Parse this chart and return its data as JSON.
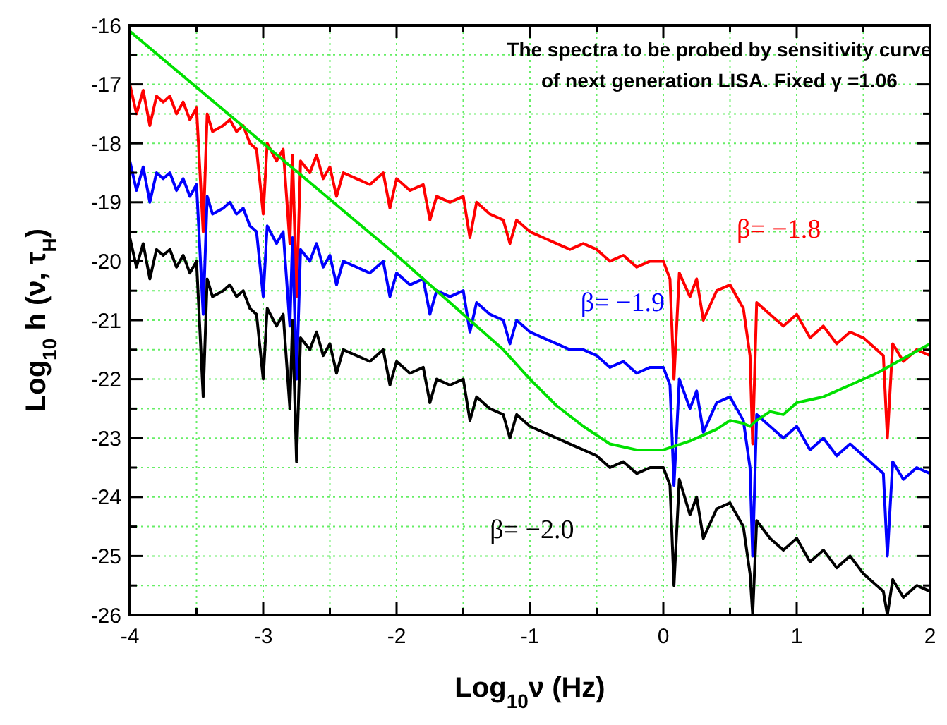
{
  "chart_data": {
    "type": "line",
    "title": "The spectra to be probed by sensitivity curve\nof next generation LISA. Fixed γ =1.06",
    "xlabel": "Log$_{10}$ν (Hz)",
    "ylabel": "Log$_{10}$ h (ν, τ$_{H}$)",
    "x": [
      -4,
      -3.95,
      -3.9,
      -3.85,
      -3.8,
      -3.75,
      -3.7,
      -3.65,
      -3.6,
      -3.55,
      -3.5,
      -3.45,
      -3.42,
      -3.38,
      -3.3,
      -3.25,
      -3.2,
      -3.15,
      -3.1,
      -3.05,
      -3.0,
      -2.97,
      -2.9,
      -2.85,
      -2.8,
      -2.78,
      -2.75,
      -2.72,
      -2.65,
      -2.6,
      -2.55,
      -2.5,
      -2.45,
      -2.4,
      -2.3,
      -2.2,
      -2.1,
      -2.05,
      -2.0,
      -1.9,
      -1.8,
      -1.75,
      -1.7,
      -1.6,
      -1.5,
      -1.45,
      -1.4,
      -1.3,
      -1.2,
      -1.15,
      -1.1,
      -1.0,
      -0.9,
      -0.8,
      -0.7,
      -0.6,
      -0.5,
      -0.4,
      -0.3,
      -0.2,
      -0.1,
      0,
      0.05,
      0.08,
      0.12,
      0.2,
      0.25,
      0.3,
      0.4,
      0.5,
      0.6,
      0.65,
      0.67,
      0.7,
      0.8,
      0.9,
      1.0,
      1.1,
      1.2,
      1.3,
      1.4,
      1.5,
      1.6,
      1.65,
      1.68,
      1.72,
      1.8,
      1.9,
      2.0
    ],
    "series": [
      {
        "name": "β= −1.8",
        "color": "#ff0000",
        "values": [
          -17.0,
          -17.5,
          -17.1,
          -17.7,
          -17.2,
          -17.3,
          -17.2,
          -17.5,
          -17.3,
          -17.6,
          -17.4,
          -19.5,
          -17.5,
          -17.8,
          -17.7,
          -17.6,
          -17.8,
          -17.7,
          -18.0,
          -18.1,
          -19.2,
          -18.0,
          -18.3,
          -18.1,
          -19.7,
          -18.2,
          -20.6,
          -18.3,
          -18.5,
          -18.2,
          -18.6,
          -18.4,
          -18.9,
          -18.5,
          -18.6,
          -18.7,
          -18.5,
          -19.1,
          -18.6,
          -18.8,
          -18.7,
          -19.3,
          -18.9,
          -19.0,
          -18.9,
          -19.6,
          -19.0,
          -19.2,
          -19.3,
          -19.7,
          -19.3,
          -19.5,
          -19.6,
          -19.7,
          -19.8,
          -19.7,
          -19.8,
          -20.0,
          -19.9,
          -20.1,
          -20.0,
          -20.0,
          -20.3,
          -22.0,
          -20.2,
          -20.6,
          -20.3,
          -21.0,
          -20.5,
          -20.4,
          -20.8,
          -21.6,
          -23.1,
          -20.7,
          -20.9,
          -21.1,
          -20.9,
          -21.3,
          -21.1,
          -21.4,
          -21.2,
          -21.3,
          -21.5,
          -21.6,
          -23.0,
          -21.4,
          -21.7,
          -21.5,
          -21.6
        ]
      },
      {
        "name": "β= −1.9",
        "color": "#0000ff",
        "values": [
          -18.3,
          -18.8,
          -18.4,
          -19.0,
          -18.5,
          -18.6,
          -18.5,
          -18.8,
          -18.6,
          -18.9,
          -18.7,
          -20.9,
          -18.9,
          -19.2,
          -19.1,
          -19.0,
          -19.2,
          -19.1,
          -19.4,
          -19.5,
          -20.6,
          -19.4,
          -19.7,
          -19.5,
          -21.1,
          -19.6,
          -22.0,
          -19.8,
          -20.0,
          -19.7,
          -20.1,
          -19.9,
          -20.4,
          -20.0,
          -20.1,
          -20.2,
          -20.0,
          -20.6,
          -20.2,
          -20.4,
          -20.3,
          -20.9,
          -20.5,
          -20.6,
          -20.5,
          -21.2,
          -20.7,
          -20.9,
          -21.0,
          -21.4,
          -21.0,
          -21.2,
          -21.3,
          -21.4,
          -21.5,
          -21.5,
          -21.6,
          -21.8,
          -21.7,
          -21.9,
          -21.8,
          -21.8,
          -22.1,
          -23.8,
          -22.0,
          -22.5,
          -22.2,
          -22.9,
          -22.4,
          -22.3,
          -22.7,
          -23.5,
          -25.0,
          -22.6,
          -22.8,
          -23.0,
          -22.8,
          -23.2,
          -23.0,
          -23.3,
          -23.1,
          -23.3,
          -23.5,
          -23.6,
          -25.0,
          -23.4,
          -23.7,
          -23.5,
          -23.6
        ]
      },
      {
        "name": "β= −2.0",
        "color": "#000000",
        "values": [
          -19.6,
          -20.1,
          -19.7,
          -20.3,
          -19.8,
          -19.9,
          -19.8,
          -20.1,
          -19.9,
          -20.2,
          -20.0,
          -22.3,
          -20.3,
          -20.6,
          -20.5,
          -20.4,
          -20.6,
          -20.5,
          -20.8,
          -20.9,
          -22.0,
          -20.8,
          -21.1,
          -20.9,
          -22.5,
          -21.0,
          -23.4,
          -21.3,
          -21.5,
          -21.2,
          -21.6,
          -21.4,
          -21.9,
          -21.5,
          -21.6,
          -21.7,
          -21.5,
          -22.1,
          -21.7,
          -21.9,
          -21.8,
          -22.4,
          -22.0,
          -22.1,
          -22.0,
          -22.7,
          -22.3,
          -22.5,
          -22.6,
          -23.0,
          -22.6,
          -22.8,
          -22.9,
          -23.0,
          -23.1,
          -23.2,
          -23.3,
          -23.5,
          -23.4,
          -23.6,
          -23.5,
          -23.5,
          -23.8,
          -25.5,
          -23.7,
          -24.3,
          -24.0,
          -24.7,
          -24.2,
          -24.1,
          -24.5,
          -25.3,
          -26.0,
          -24.4,
          -24.7,
          -24.9,
          -24.7,
          -25.1,
          -24.9,
          -25.2,
          -25.0,
          -25.3,
          -25.5,
          -25.6,
          -26.0,
          -25.4,
          -25.7,
          -25.5,
          -25.6
        ]
      },
      {
        "color": "#00e000",
        "x": [
          -4,
          -3,
          -2,
          -1.5,
          -1.2,
          -1.0,
          -0.8,
          -0.6,
          -0.4,
          -0.2,
          0,
          0.2,
          0.4,
          0.5,
          0.6,
          0.65,
          0.7,
          0.8,
          0.9,
          1.0,
          1.2,
          1.4,
          1.6,
          1.8,
          2.0
        ],
        "values": [
          -16.1,
          -18.0,
          -19.9,
          -20.9,
          -21.5,
          -22.0,
          -22.45,
          -22.8,
          -23.1,
          -23.2,
          -23.2,
          -23.05,
          -22.85,
          -22.7,
          -22.75,
          -22.8,
          -22.7,
          -22.55,
          -22.6,
          -22.4,
          -22.3,
          -22.1,
          -21.9,
          -21.65,
          -21.4
        ]
      }
    ],
    "xlim": [
      -4,
      2
    ],
    "xticks": [
      -4,
      {
        "value": -3.5,
        "label": null
      },
      -3,
      {
        "value": -2.5,
        "label": null
      },
      -2,
      {
        "value": -1.5,
        "label": null
      },
      -1,
      {
        "value": -0.5,
        "label": null
      },
      0,
      {
        "value": 0.5,
        "label": null
      },
      1,
      {
        "value": 1.5,
        "label": null
      },
      2
    ],
    "ylim": [
      -26,
      -16
    ],
    "yticks": [
      -26,
      {
        "value": -25.5,
        "label": null
      },
      -25,
      {
        "value": -24.5,
        "label": null
      },
      -24,
      {
        "value": -23.5,
        "label": null
      },
      -23,
      {
        "value": -22.5,
        "label": null
      },
      -22,
      {
        "value": -21.5,
        "label": null
      },
      -21,
      {
        "value": -20.5,
        "label": null
      },
      -20,
      {
        "value": -19.5,
        "label": null
      },
      -19,
      {
        "value": -18.5,
        "label": null
      },
      -18,
      {
        "value": -17.5,
        "label": null
      },
      -17,
      {
        "value": -16.5,
        "label": null
      },
      -16
    ],
    "grid": true,
    "marker": "none",
    "line_style": "solid"
  }
}
